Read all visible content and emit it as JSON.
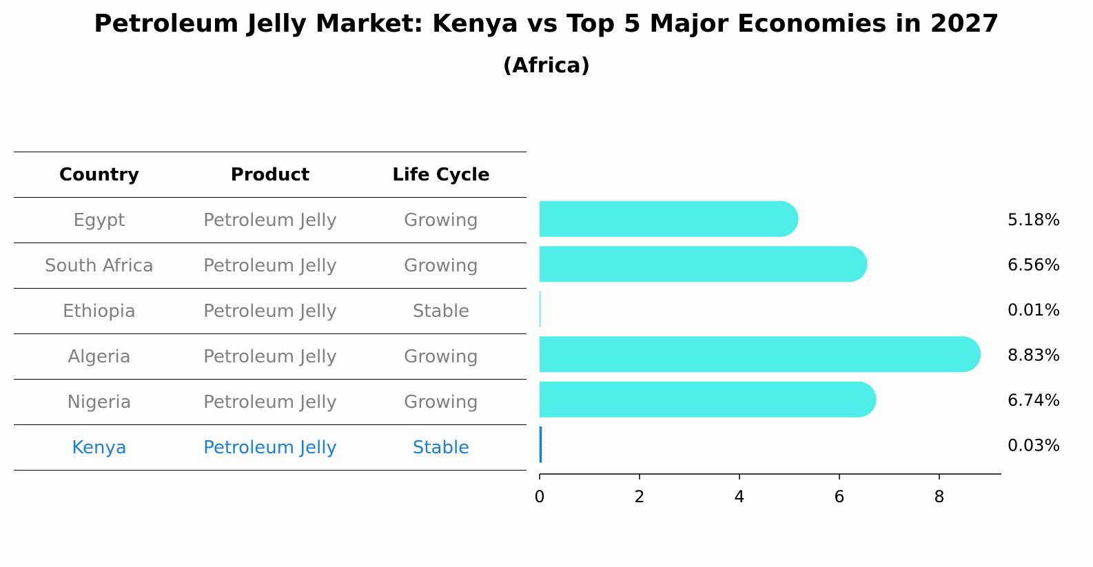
{
  "header": {
    "title": "Petroleum Jelly Market: Kenya vs Top 5 Major Economies in 2027",
    "subtitle": "(Africa)"
  },
  "table": {
    "columns": [
      "Country",
      "Product",
      "Life Cycle"
    ],
    "rows": [
      {
        "country": "Egypt",
        "product": "Petroleum Jelly",
        "life_cycle": "Growing"
      },
      {
        "country": "South Africa",
        "product": "Petroleum Jelly",
        "life_cycle": "Growing"
      },
      {
        "country": "Ethiopia",
        "product": "Petroleum Jelly",
        "life_cycle": "Stable"
      },
      {
        "country": "Algeria",
        "product": "Petroleum Jelly",
        "life_cycle": "Growing"
      },
      {
        "country": "Nigeria",
        "product": "Petroleum Jelly",
        "life_cycle": "Growing"
      },
      {
        "country": "Kenya",
        "product": "Petroleum Jelly",
        "life_cycle": "Stable"
      }
    ]
  },
  "colors": {
    "bar": "#4eede8",
    "highlight": "#1a80d5",
    "row_text": "#808080"
  },
  "chart_data": {
    "type": "bar",
    "orientation": "horizontal",
    "categories": [
      "Egypt",
      "South Africa",
      "Ethiopia",
      "Algeria",
      "Nigeria",
      "Kenya"
    ],
    "values": [
      5.18,
      6.56,
      0.01,
      8.83,
      6.74,
      0.03
    ],
    "value_labels": [
      "5.18%",
      "6.56%",
      "0.01%",
      "8.83%",
      "6.74%",
      "0.03%"
    ],
    "xlim": [
      0,
      9.3
    ],
    "xticks": [
      0,
      2,
      4,
      6,
      8
    ],
    "xlabel": "",
    "ylabel": ""
  }
}
